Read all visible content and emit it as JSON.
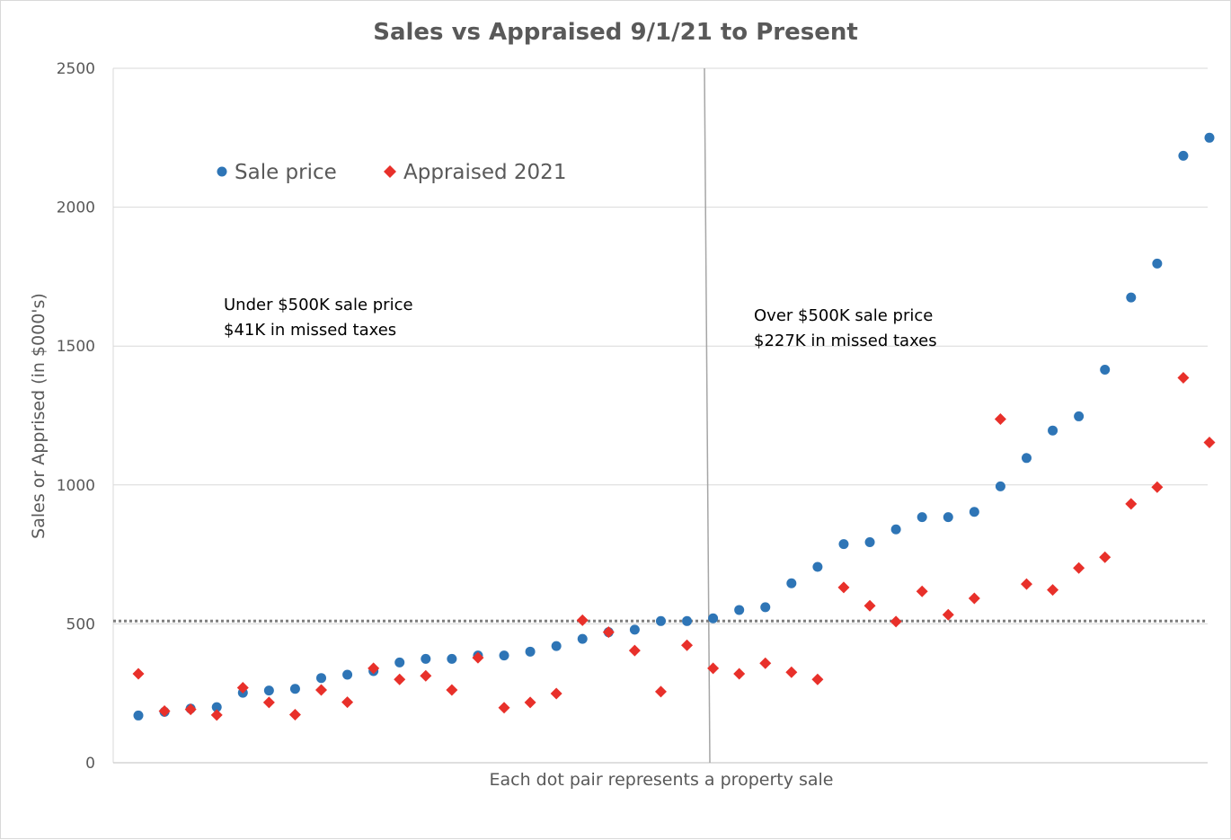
{
  "chart_data": {
    "type": "scatter",
    "title": "Sales vs Appraised 9/1/21 to Present",
    "xlabel": "Each dot pair represents a property sale",
    "ylabel": "Sales  or Apprised (in $000's)",
    "ylim": [
      0,
      2500
    ],
    "yticks": [
      "0",
      "500",
      "1000",
      "1500",
      "2000",
      "2500"
    ],
    "grid": true,
    "legend": "upper-left",
    "threshold": 510,
    "annotations": [
      {
        "line1": "Under $500K sale price",
        "line2": "$41K in missed taxes"
      },
      {
        "line1": "Over $500K sale price",
        "line2": "$227K in missed taxes"
      }
    ],
    "series": [
      {
        "name": "Sale price",
        "marker": "circle",
        "color": "#2E75B6",
        "values": [
          170,
          183,
          195,
          200,
          252,
          260,
          266,
          305,
          317,
          330,
          361,
          374,
          374,
          386,
          386,
          400,
          420,
          446,
          470,
          479,
          510,
          510,
          520,
          550,
          560,
          646,
          705,
          787,
          794,
          840,
          884,
          884,
          903,
          995,
          1097,
          1196,
          1247,
          1415,
          1675,
          1797,
          2185,
          2250
        ]
      },
      {
        "name": "Appraised 2021",
        "marker": "diamond",
        "color": "#E8302A",
        "values": [
          320,
          186,
          192,
          172,
          270,
          217,
          173,
          262,
          218,
          340,
          300,
          313,
          262,
          378,
          198,
          217,
          249,
          513,
          470,
          404,
          256,
          423,
          340,
          320,
          358,
          326,
          300,
          631,
          565,
          508,
          617,
          533,
          592,
          1237,
          643,
          622,
          701,
          740,
          932,
          992,
          1386,
          1153
        ]
      }
    ]
  }
}
